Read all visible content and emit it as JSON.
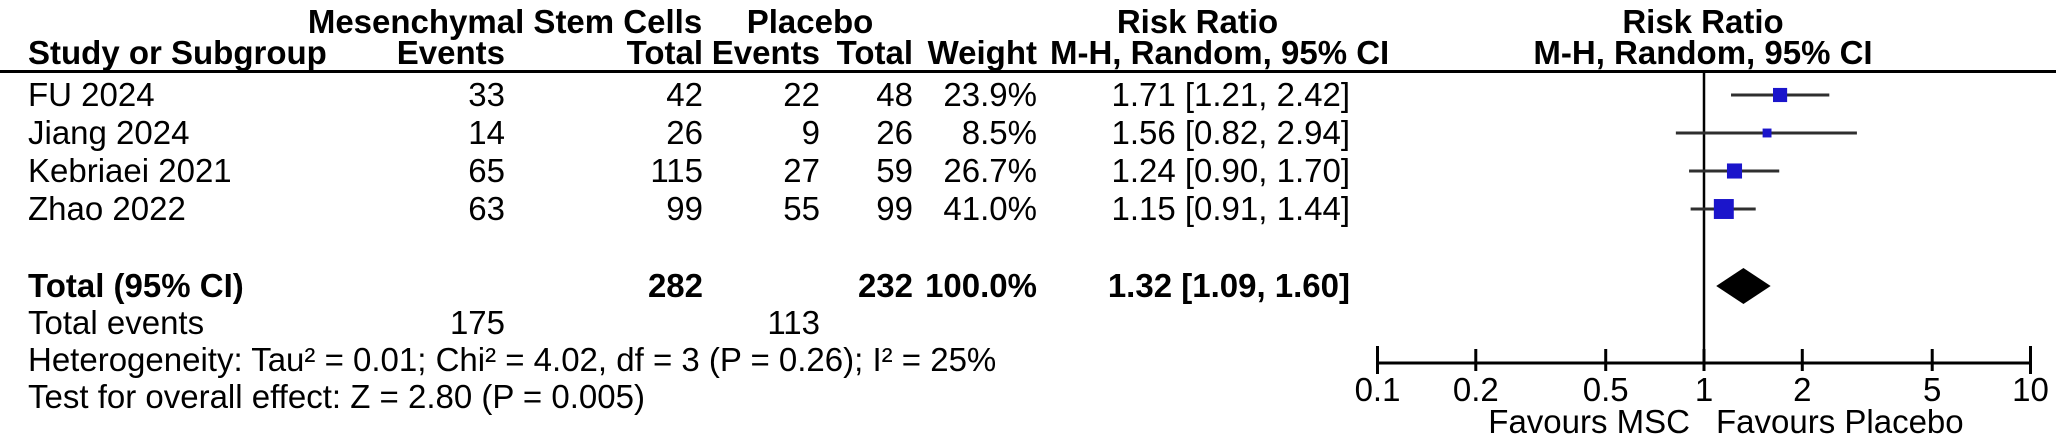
{
  "headers": {
    "group1": "Mesenchymal Stem Cells",
    "group2": "Placebo",
    "risk_ratio_left": "Risk Ratio",
    "risk_ratio_right": "Risk Ratio",
    "mh_left": "M-H, Random, 95% CI",
    "mh_right": "M-H, Random, 95% CI",
    "study": "Study or Subgroup",
    "events1": "Events",
    "total1": "Total",
    "events2": "Events",
    "total2": "Total",
    "weight": "Weight"
  },
  "rows": [
    {
      "study": "FU 2024",
      "events1": "33",
      "total1": "42",
      "events2": "22",
      "total2": "48",
      "weight": "23.9%",
      "rr_text": "1.71 [1.21, 2.42]"
    },
    {
      "study": "Jiang 2024",
      "events1": "14",
      "total1": "26",
      "events2": "9",
      "total2": "26",
      "weight": "8.5%",
      "rr_text": "1.56 [0.82, 2.94]"
    },
    {
      "study": "Kebriaei 2021",
      "events1": "65",
      "total1": "115",
      "events2": "27",
      "total2": "59",
      "weight": "26.7%",
      "rr_text": "1.24 [0.90, 1.70]"
    },
    {
      "study": "Zhao 2022",
      "events1": "63",
      "total1": "99",
      "events2": "55",
      "total2": "99",
      "weight": "41.0%",
      "rr_text": "1.15 [0.91, 1.44]"
    }
  ],
  "total_row": {
    "label": "Total (95% CI)",
    "total1": "282",
    "total2": "232",
    "weight": "100.0%",
    "rr_text": "1.32 [1.09, 1.60]"
  },
  "total_events_row": {
    "label": "Total events",
    "events1": "175",
    "events2": "113"
  },
  "footnotes": {
    "heterogeneity": "Heterogeneity: Tau² = 0.01; Chi² = 4.02, df = 3 (P = 0.26); I² = 25%",
    "overall_effect": "Test for overall effect: Z = 2.80 (P = 0.005)"
  },
  "chart_data": {
    "type": "forest",
    "scale": "log10",
    "effect_measure": "Risk Ratio",
    "method": "M-H, Random, 95% CI",
    "axis_ticks": [
      0.1,
      0.2,
      0.5,
      1,
      2,
      5,
      10
    ],
    "axis_range": [
      0.1,
      10
    ],
    "null_value": 1,
    "favours_left": "Favours MSC",
    "favours_right": "Favours Placebo",
    "studies": [
      {
        "name": "FU 2024",
        "rr": 1.71,
        "ci_low": 1.21,
        "ci_high": 2.42,
        "weight_pct": 23.9
      },
      {
        "name": "Jiang 2024",
        "rr": 1.56,
        "ci_low": 0.82,
        "ci_high": 2.94,
        "weight_pct": 8.5
      },
      {
        "name": "Kebriaei 2021",
        "rr": 1.24,
        "ci_low": 0.9,
        "ci_high": 1.7,
        "weight_pct": 26.7
      },
      {
        "name": "Zhao 2022",
        "rr": 1.15,
        "ci_low": 0.91,
        "ci_high": 1.44,
        "weight_pct": 41.0
      }
    ],
    "total": {
      "rr": 1.32,
      "ci_low": 1.09,
      "ci_high": 1.6
    },
    "colors": {
      "marker": "#1b15cb",
      "diamond": "#000000",
      "line": "#2f2f2f",
      "axis": "#000000"
    }
  }
}
